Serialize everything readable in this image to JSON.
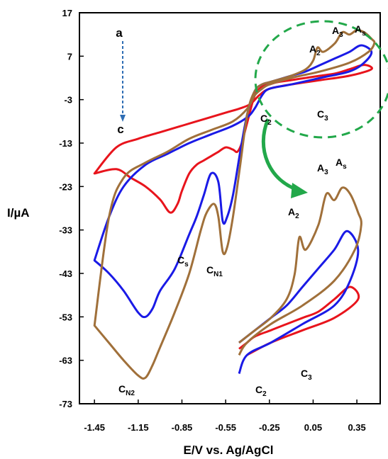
{
  "chart_data": {
    "type": "line",
    "xlabel": "E/V vs. Ag/AgCl",
    "ylabel": "I/µA",
    "xlim": [
      -1.45,
      0.5
    ],
    "ylim": [
      -73,
      17
    ],
    "xticks": [
      "-1.45",
      "-1.15",
      "-0.85",
      "-0.55",
      "-0.25",
      "0.05",
      "0.35"
    ],
    "yticks": [
      "17",
      "7",
      "-3",
      "-13",
      "-23",
      "-33",
      "-43",
      "-53",
      "-63",
      "-73"
    ],
    "legend": {
      "top_label": "a",
      "bottom_label": "c",
      "top_color": "#e8141c",
      "bottom_color": "#a0703a",
      "arrow_color": "#2e6db4"
    },
    "colors": {
      "a": "#e8141c",
      "b": "#1a1ae6",
      "c": "#a0703a",
      "zoom_circle": "#22a84a"
    },
    "annotations": {
      "A2": {
        "main": "A",
        "sub": "2"
      },
      "A3": {
        "main": "A",
        "sub": "3"
      },
      "As": {
        "main": "A",
        "sub": "s"
      },
      "C2": {
        "main": "C",
        "sub": "2"
      },
      "C3": {
        "main": "C",
        "sub": "3"
      },
      "Cs": {
        "main": "C",
        "sub": "s"
      },
      "CN1": {
        "main": "C",
        "sub": "N1"
      },
      "CN2": {
        "main": "C",
        "sub": "N2"
      }
    },
    "series": [
      {
        "color": "#e8141c",
        "x": [
          -1.45,
          -1.3,
          -1.2,
          -1.1,
          -1.0,
          -0.93,
          -0.88,
          -0.85,
          -0.8,
          -0.75,
          -0.7,
          -0.65,
          -0.6,
          -0.55,
          -0.5,
          -0.47,
          -0.44,
          -0.4,
          -0.35,
          -0.3,
          -0.25,
          -0.2,
          -0.1,
          0.0,
          0.1,
          0.2,
          0.3,
          0.4,
          0.45,
          0.3,
          0.1,
          -0.1,
          -0.25,
          -0.32,
          -0.38,
          -0.45,
          -0.55,
          -0.7,
          -0.85,
          -1.0,
          -1.15,
          -1.3,
          -1.45
        ],
        "y": [
          -20,
          -19,
          -21,
          -23,
          -26,
          -29,
          -27,
          -24,
          -20,
          -18,
          -17,
          -16,
          -15,
          -14,
          -14.5,
          -15,
          -13,
          -8,
          -2,
          0,
          0.5,
          1,
          1.5,
          2,
          2.5,
          3,
          4,
          5,
          4,
          2.5,
          1.5,
          0.5,
          -0.5,
          -2,
          -4,
          -5,
          -6,
          -7.5,
          -9,
          -10.5,
          -12,
          -14,
          -20
        ]
      },
      {
        "color": "#1a1ae6",
        "x": [
          -1.45,
          -1.35,
          -1.25,
          -1.15,
          -1.1,
          -1.05,
          -1.0,
          -0.9,
          -0.8,
          -0.75,
          -0.7,
          -0.65,
          -0.6,
          -0.57,
          -0.54,
          -0.5,
          -0.45,
          -0.4,
          -0.35,
          -0.3,
          -0.25,
          -0.2,
          -0.1,
          0.0,
          0.1,
          0.2,
          0.3,
          0.38,
          0.45,
          0.4,
          0.3,
          0.1,
          -0.1,
          -0.25,
          -0.3,
          -0.35,
          -0.4,
          -0.5,
          -0.65,
          -0.8,
          -0.95,
          -1.1,
          -1.25,
          -1.35,
          -1.45
        ],
        "y": [
          -40,
          -43,
          -47,
          -52,
          -53,
          -51,
          -47,
          -42,
          -34,
          -30,
          -25,
          -20,
          -22,
          -31,
          -30,
          -25,
          -15,
          -6,
          -1,
          0.5,
          1,
          1.5,
          2.5,
          3.5,
          5,
          6.5,
          8,
          9.5,
          8,
          5.5,
          3.5,
          2,
          0.5,
          -0.5,
          -2,
          -5,
          -7,
          -9,
          -11,
          -13,
          -15.5,
          -18,
          -23,
          -30,
          -40
        ]
      },
      {
        "color": "#a0703a",
        "x": [
          -1.45,
          -1.35,
          -1.25,
          -1.15,
          -1.1,
          -1.05,
          -1.0,
          -0.9,
          -0.8,
          -0.72,
          -0.68,
          -0.63,
          -0.6,
          -0.57,
          -0.54,
          -0.5,
          -0.45,
          -0.4,
          -0.35,
          -0.3,
          -0.25,
          -0.2,
          -0.1,
          0.0,
          0.05,
          0.08,
          0.12,
          0.2,
          0.25,
          0.3,
          0.35,
          0.4,
          0.45,
          0.47,
          0.43,
          0.3,
          0.1,
          -0.1,
          -0.25,
          -0.3,
          -0.35,
          -0.4,
          -0.5,
          -0.65,
          -0.8,
          -0.95,
          -1.1,
          -1.25,
          -1.35,
          -1.45
        ],
        "y": [
          -55,
          -59,
          -63,
          -66.5,
          -67,
          -64,
          -60,
          -52,
          -43,
          -33,
          -29,
          -27,
          -30,
          -38,
          -37,
          -30,
          -18,
          -6,
          -1,
          0.5,
          1,
          1.5,
          2.5,
          4,
          6,
          9,
          8,
          10,
          12.5,
          12,
          13,
          12.5,
          11,
          10,
          8,
          5.5,
          3.5,
          2,
          0.5,
          -0.5,
          -2,
          -5,
          -8,
          -10,
          -12,
          -15,
          -17.5,
          -21,
          -30,
          -55
        ]
      }
    ]
  }
}
